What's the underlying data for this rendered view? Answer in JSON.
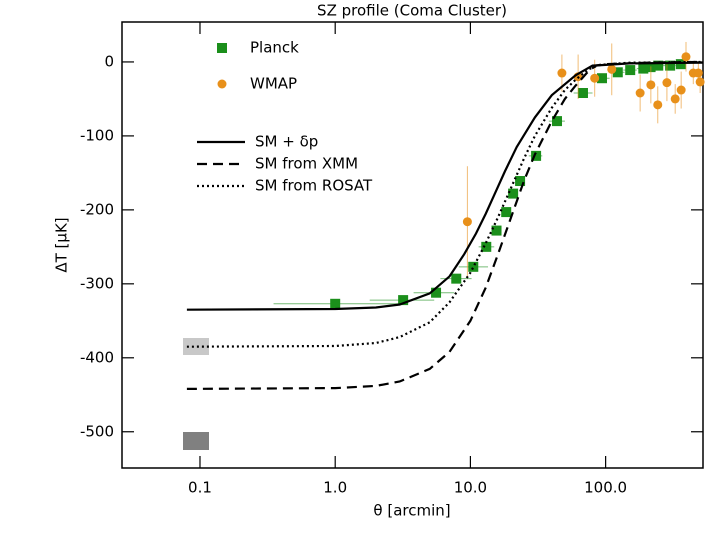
{
  "chart_data": {
    "type": "scatter",
    "title": "SZ profile (Coma Cluster)",
    "x_label": "θ [arcmin]",
    "y_label": "ΔT [μK]",
    "xlim": [
      0.0265,
      525
    ],
    "ylim": [
      -549,
      54
    ],
    "log_x": true,
    "xticks": [
      0.1,
      {
        "value": 1,
        "label": "1.0"
      },
      {
        "value": 10,
        "label": "10.0"
      },
      {
        "value": 100,
        "label": "100.0"
      }
    ],
    "yticks": [
      0,
      -100,
      -200,
      -300,
      -400,
      -500
    ],
    "series": [
      {
        "name": "Planck",
        "color": "#1b8f1b",
        "marker": "square",
        "x": [
          1.0,
          3.18,
          5.57,
          7.86,
          10.5,
          13.1,
          15.6,
          18.4,
          20.7,
          23.3,
          30.6,
          43.7,
          68,
          94,
          123,
          152,
          190,
          215,
          245,
          300,
          360
        ],
        "values": [
          -327,
          -322,
          -312,
          -293,
          -277,
          -250,
          -228,
          -203,
          -178,
          -161,
          -127,
          -80,
          -42,
          -22,
          -14,
          -11,
          -9,
          -7,
          -5,
          -5,
          -3
        ],
        "x_low": [
          0.35,
          1.8,
          3.8,
          6.0,
          8.2,
          11.5,
          14.4,
          17,
          19,
          21.5,
          27,
          38,
          58,
          82,
          108,
          135,
          170,
          195,
          220,
          270,
          330
        ],
        "x_high": [
          3.0,
          5.4,
          7.6,
          10.2,
          13.5,
          15.0,
          16.8,
          19.8,
          22.4,
          25,
          34,
          50,
          80,
          107,
          138,
          170,
          210,
          235,
          270,
          330,
          390
        ]
      },
      {
        "name": "WMAP",
        "color": "#e8901a",
        "marker": "circle",
        "x": [
          9.5,
          47.5,
          62.6,
          83,
          111,
          180,
          216,
          243,
          284,
          327,
          362,
          393,
          445,
          485,
          500
        ],
        "values": [
          -216,
          -15,
          -20,
          -22,
          -10,
          -42,
          -31,
          -58,
          -28,
          -50,
          -38,
          7,
          -15,
          -15,
          -27
        ],
        "yerr": [
          75,
          25,
          30,
          25,
          35,
          25,
          25,
          25,
          25,
          20,
          25,
          20,
          15,
          15,
          15
        ]
      },
      {
        "name": "SM + δp",
        "color": "#000000",
        "dash": "solid",
        "x": [
          0.08,
          1,
          2,
          3,
          5,
          7,
          9,
          11,
          13,
          15,
          18,
          22,
          30,
          40,
          60,
          80,
          100,
          150,
          525
        ],
        "values": [
          -335,
          -334,
          -332,
          -328,
          -313,
          -290,
          -260,
          -232,
          -205,
          -180,
          -148,
          -115,
          -75,
          -45,
          -18,
          -5,
          -4,
          -2,
          -1
        ]
      },
      {
        "name": "SM from XMM",
        "color": "#000000",
        "dash": "dashed",
        "x": [
          0.08,
          1,
          2,
          3,
          5,
          7,
          10,
          13,
          16,
          20,
          25,
          30,
          40,
          50,
          60,
          75,
          85,
          100,
          200,
          525
        ],
        "values": [
          -442,
          -441,
          -438,
          -432,
          -415,
          -392,
          -350,
          -305,
          -260,
          -210,
          -160,
          -125,
          -80,
          -50,
          -32,
          -12,
          -5,
          -3,
          -1,
          0
        ]
      },
      {
        "name": "SM from ROSAT",
        "color": "#000000",
        "dash": "dotted",
        "x": [
          0.08,
          1,
          2,
          3,
          5,
          7,
          10,
          13,
          16,
          20,
          25,
          30,
          40,
          50,
          60,
          75,
          90,
          150,
          525
        ],
        "values": [
          -385,
          -384,
          -380,
          -372,
          -352,
          -325,
          -285,
          -245,
          -210,
          -170,
          -130,
          -100,
          -62,
          -38,
          -24,
          -10,
          -4,
          -1,
          0
        ]
      }
    ]
  }
}
